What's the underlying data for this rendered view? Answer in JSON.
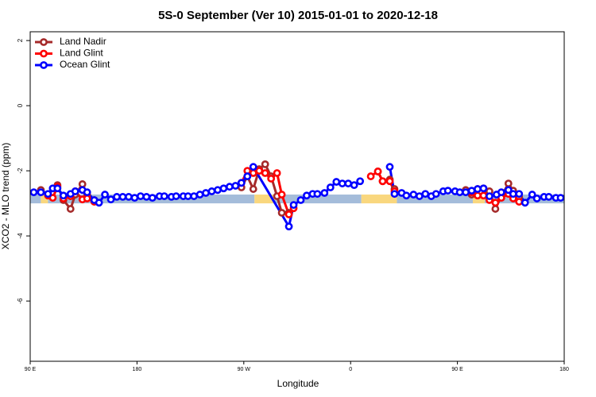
{
  "chart_data": {
    "type": "line",
    "title": "5S-0 September (Ver 10)   2015-01-01 to 2020-12-18",
    "x_label": "Longitude",
    "y_label": "XCO2 - MLO trend (ppm)",
    "xlim": [
      90,
      540
    ],
    "ylim": [
      -7.85,
      2.27
    ],
    "xticks": [
      {
        "value": 90,
        "label": "90 E"
      },
      {
        "value": 180,
        "label": "180"
      },
      {
        "value": 270,
        "label": "90 W"
      },
      {
        "value": 360,
        "label": "0"
      },
      {
        "value": 450,
        "label": "90 E"
      },
      {
        "value": 540,
        "label": "180"
      }
    ],
    "yticks": [
      -6,
      -4,
      -2,
      0,
      2
    ],
    "legend": "top-left",
    "surface_band": {
      "range": [
        -3.0,
        -2.73
      ],
      "segments": [
        {
          "x": [
            90,
            99
          ],
          "color": "#a4bcda"
        },
        {
          "x": [
            99,
            105
          ],
          "color": "#f9d77e"
        },
        {
          "x": [
            105,
            279
          ],
          "color": "#a4bcda"
        },
        {
          "x": [
            279,
            296
          ],
          "color": "#f9d77e"
        },
        {
          "x": [
            296,
            369
          ],
          "color": "#a4bcda"
        },
        {
          "x": [
            369,
            399
          ],
          "color": "#f9d77e"
        },
        {
          "x": [
            399,
            463
          ],
          "color": "#a4bcda"
        },
        {
          "x": [
            463,
            473
          ],
          "color": "#f9d77e"
        },
        {
          "x": [
            473,
            540
          ],
          "color": "#a4bcda"
        }
      ]
    },
    "series": [
      {
        "name": "Land Nadir",
        "color": "#a52a2a",
        "x": [
          99,
          105,
          113,
          118,
          124,
          128,
          134,
          138,
          144,
          null,
          268,
          273,
          278,
          283,
          288,
          293,
          298,
          302,
          308,
          null,
          383,
          387,
          393,
          397,
          null,
          457,
          462,
          467,
          472,
          477,
          482,
          487,
          493,
          497,
          502
        ],
        "values": [
          -2.59,
          -2.73,
          -2.44,
          -2.9,
          -3.17,
          -2.73,
          -2.41,
          -2.73,
          -2.9,
          null,
          -2.51,
          -2.17,
          -2.56,
          -1.95,
          -1.8,
          -2.17,
          -2.78,
          -3.29,
          -3.29,
          null,
          -2.02,
          -2.32,
          -2.27,
          -2.56,
          null,
          -2.59,
          -2.73,
          -2.56,
          -2.54,
          -2.63,
          -3.17,
          -2.78,
          -2.39,
          -2.61,
          -2.8
        ]
      },
      {
        "name": "Land Glint",
        "color": "#ff0000",
        "x": [
          105,
          109,
          113,
          118,
          124,
          128,
          134,
          138,
          144,
          null,
          268,
          273,
          278,
          283,
          288,
          293,
          298,
          302,
          308,
          312,
          null,
          377,
          383,
          387,
          393,
          397,
          null,
          462,
          467,
          472,
          477,
          482,
          487,
          493,
          497,
          502
        ],
        "values": [
          -2.76,
          -2.83,
          -2.49,
          -2.85,
          -2.78,
          -2.63,
          -2.88,
          -2.85,
          -2.95,
          null,
          -2.37,
          -2.0,
          -2.07,
          -2.0,
          -2.07,
          -2.24,
          -2.07,
          -2.73,
          -3.34,
          -3.15,
          null,
          -2.17,
          -2.02,
          -2.32,
          -2.32,
          -2.63,
          null,
          -2.66,
          -2.76,
          -2.76,
          -2.9,
          -2.98,
          -2.83,
          -2.71,
          -2.85,
          -2.95
        ]
      },
      {
        "name": "Ocean Glint",
        "color": "#0000ff",
        "x": [
          93,
          99,
          105,
          109,
          113,
          118,
          124,
          128,
          134,
          138,
          144,
          148,
          153,
          158,
          163,
          168,
          173,
          178,
          183,
          188,
          193,
          199,
          203,
          209,
          213,
          219,
          223,
          228,
          233,
          238,
          243,
          248,
          253,
          258,
          263,
          268,
          273,
          278,
          308,
          312,
          318,
          323,
          328,
          332,
          338,
          343,
          348,
          353,
          358,
          363,
          368,
          null,
          393,
          397,
          403,
          407,
          413,
          418,
          423,
          428,
          432,
          438,
          442,
          448,
          452,
          457,
          462,
          467,
          472,
          477,
          483,
          487,
          493,
          497,
          502,
          507,
          513,
          517,
          523,
          527,
          533,
          537
        ],
        "values": [
          -2.66,
          -2.66,
          -2.71,
          -2.54,
          -2.54,
          -2.76,
          -2.71,
          -2.63,
          -2.59,
          -2.66,
          -2.9,
          -2.98,
          -2.73,
          -2.88,
          -2.8,
          -2.8,
          -2.8,
          -2.83,
          -2.78,
          -2.8,
          -2.83,
          -2.78,
          -2.78,
          -2.8,
          -2.78,
          -2.78,
          -2.78,
          -2.78,
          -2.73,
          -2.68,
          -2.63,
          -2.59,
          -2.54,
          -2.49,
          -2.46,
          -2.37,
          -2.17,
          -1.88,
          -3.71,
          -3.05,
          -2.9,
          -2.76,
          -2.71,
          -2.71,
          -2.68,
          -2.51,
          -2.34,
          -2.39,
          -2.39,
          -2.44,
          -2.32,
          null,
          -1.88,
          -2.71,
          -2.68,
          -2.76,
          -2.73,
          -2.78,
          -2.71,
          -2.78,
          -2.71,
          -2.63,
          -2.61,
          -2.63,
          -2.66,
          -2.66,
          -2.61,
          -2.56,
          -2.54,
          -2.78,
          -2.73,
          -2.66,
          -2.59,
          -2.71,
          -2.71,
          -2.98,
          -2.73,
          -2.85,
          -2.8,
          -2.8,
          -2.83,
          -2.83
        ]
      }
    ]
  }
}
